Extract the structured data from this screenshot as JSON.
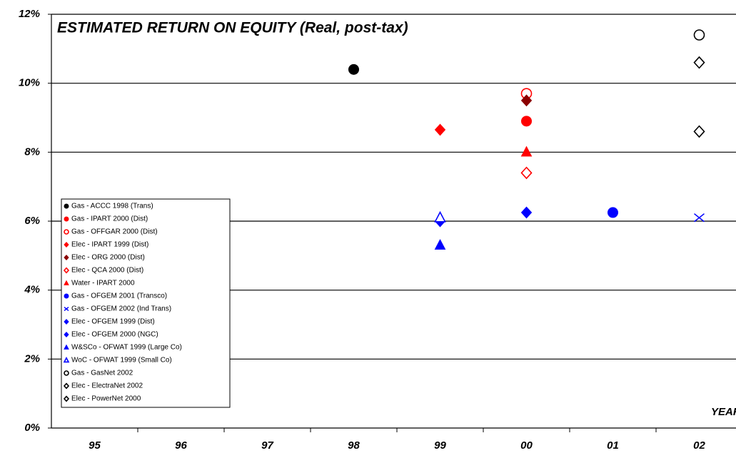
{
  "chart_data": {
    "type": "scatter",
    "title": "ESTIMATED RETURN ON EQUITY (Real, post-tax)",
    "x_label": "YEAR",
    "categories": [
      "95",
      "96",
      "97",
      "98",
      "99",
      "00",
      "01",
      "02"
    ],
    "ylim": [
      0,
      12
    ],
    "yticks": [
      {
        "value": 0,
        "label": "0%"
      },
      {
        "value": 2,
        "label": "2%"
      },
      {
        "value": 4,
        "label": "4%"
      },
      {
        "value": 6,
        "label": "6%"
      },
      {
        "value": 8,
        "label": "8%"
      },
      {
        "value": 10,
        "label": "10%"
      },
      {
        "value": 12,
        "label": "12%"
      }
    ],
    "grid": true,
    "legend": "bottom-left",
    "series": [
      {
        "name": "Gas - ACCC 1998 (Trans)",
        "color": "#000000",
        "marker": "circle",
        "filled": true,
        "values": [
          null,
          null,
          null,
          10.4,
          null,
          null,
          null,
          null
        ]
      },
      {
        "name": "Gas - IPART 2000 (Dist)",
        "color": "#ff0000",
        "marker": "circle",
        "filled": true,
        "values": [
          null,
          null,
          null,
          null,
          null,
          8.9,
          null,
          null
        ]
      },
      {
        "name": "Gas - OFFGAR 2000 (Dist)",
        "color": "#ff0000",
        "marker": "circle",
        "filled": false,
        "values": [
          null,
          null,
          null,
          null,
          null,
          9.7,
          null,
          null
        ]
      },
      {
        "name": "Elec - IPART 1999 (Dist)",
        "color": "#ff0000",
        "marker": "diamond",
        "filled": true,
        "values": [
          null,
          null,
          null,
          null,
          8.65,
          null,
          null,
          null
        ]
      },
      {
        "name": "Elec - ORG 2000 (Dist)",
        "color": "#8b0000",
        "marker": "diamond",
        "filled": true,
        "values": [
          null,
          null,
          null,
          null,
          null,
          9.5,
          null,
          null
        ]
      },
      {
        "name": "Elec - QCA 2000 (Dist)",
        "color": "#ff0000",
        "marker": "diamond",
        "filled": false,
        "values": [
          null,
          null,
          null,
          null,
          null,
          7.4,
          null,
          null
        ]
      },
      {
        "name": "Water - IPART 2000",
        "color": "#ff0000",
        "marker": "triangle",
        "filled": true,
        "values": [
          null,
          null,
          null,
          null,
          null,
          8.0,
          null,
          null
        ]
      },
      {
        "name": "Gas - OFGEM 2001 (Transco)",
        "color": "#0000ff",
        "marker": "circle",
        "filled": true,
        "values": [
          null,
          null,
          null,
          null,
          null,
          null,
          6.25,
          null
        ]
      },
      {
        "name": "Gas - OFGEM 2002 (Ind Trans)",
        "color": "#0000ff",
        "marker": "x",
        "filled": false,
        "values": [
          null,
          null,
          null,
          null,
          null,
          null,
          null,
          6.1
        ]
      },
      {
        "name": "Elec - OFGEM 1999 (Dist)",
        "color": "#0000ff",
        "marker": "diamond",
        "filled": true,
        "values": [
          null,
          null,
          null,
          null,
          6.0,
          null,
          null,
          null
        ]
      },
      {
        "name": "Elec - OFGEM 2000 (NGC)",
        "color": "#0000ff",
        "marker": "diamond",
        "filled": true,
        "values": [
          null,
          null,
          null,
          null,
          null,
          6.25,
          null,
          null
        ]
      },
      {
        "name": "W&SCo - OFWAT 1999 (Large Co)",
        "color": "#0000ff",
        "marker": "triangle",
        "filled": true,
        "values": [
          null,
          null,
          null,
          null,
          5.3,
          null,
          null,
          null
        ]
      },
      {
        "name": "WoC - OFWAT 1999 (Small Co)",
        "color": "#0000ff",
        "marker": "triangle",
        "filled": false,
        "values": [
          null,
          null,
          null,
          null,
          6.1,
          null,
          null,
          null
        ]
      },
      {
        "name": "Gas - GasNet 2002",
        "color": "#000000",
        "marker": "circle",
        "filled": false,
        "values": [
          null,
          null,
          null,
          null,
          null,
          null,
          null,
          11.4
        ]
      },
      {
        "name": "Elec - ElectraNet 2002",
        "color": "#000000",
        "marker": "diamond",
        "filled": false,
        "values": [
          null,
          null,
          null,
          null,
          null,
          null,
          null,
          10.6
        ]
      },
      {
        "name": "Elec - PowerNet 2000",
        "color": "#000000",
        "marker": "diamond",
        "filled": false,
        "values": [
          null,
          null,
          null,
          null,
          null,
          null,
          null,
          8.6
        ]
      }
    ]
  }
}
